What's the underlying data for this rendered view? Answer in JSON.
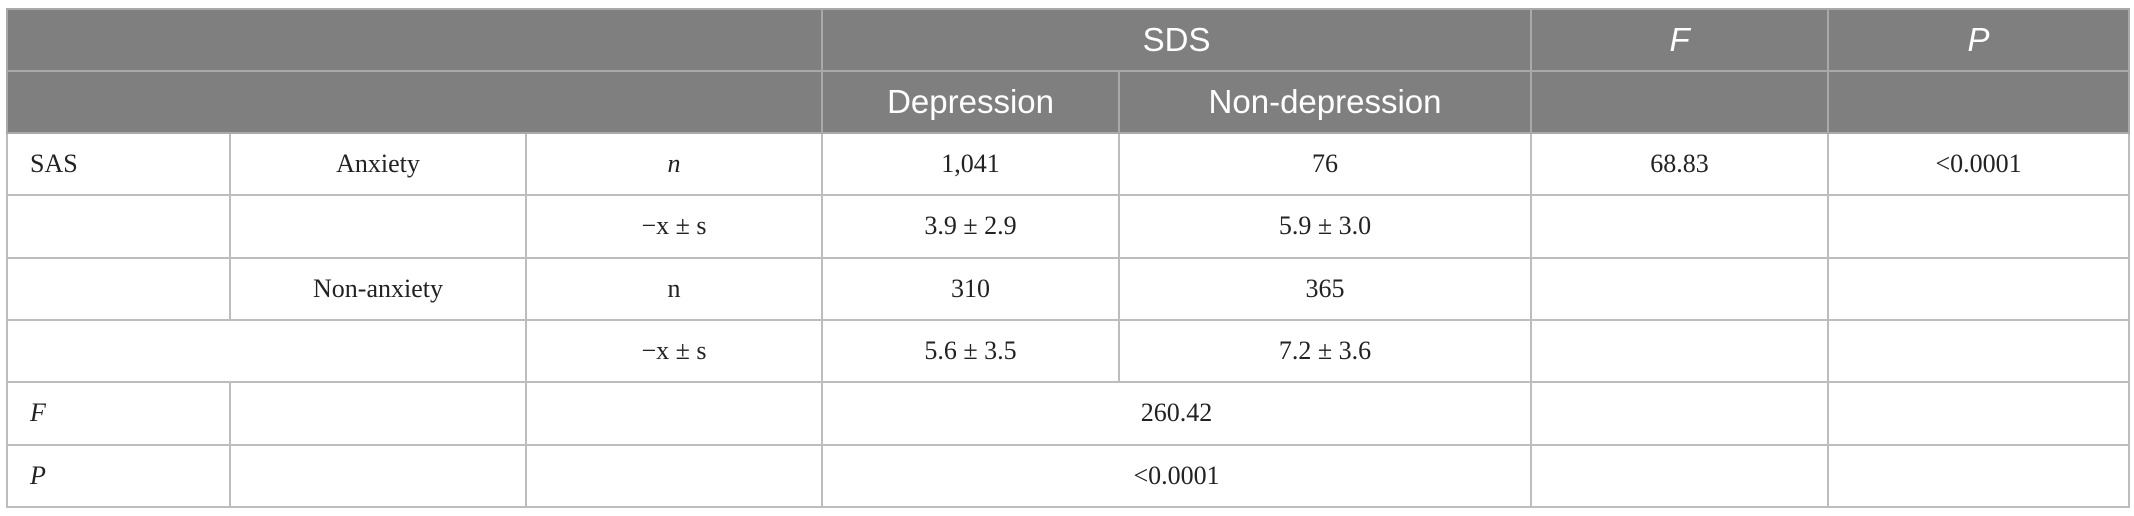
{
  "header": {
    "row1": {
      "sds": "SDS",
      "f": "F",
      "p": "P"
    },
    "row2": {
      "depression": "Depression",
      "non_depression": "Non-depression"
    }
  },
  "rows": [
    {
      "c0": "SAS",
      "c1": "Anxiety",
      "c2": "n",
      "dep": "1,041",
      "nondep": "76",
      "f": "68.83",
      "p": "<0.0001"
    },
    {
      "c0": "",
      "c1": "",
      "c2": "−x ± s",
      "dep": "3.9 ± 2.9",
      "nondep": "5.9 ± 3.0",
      "f": "",
      "p": ""
    },
    {
      "c0": "",
      "c1": "Non-anxiety",
      "c2": "n",
      "dep": "310",
      "nondep": "365",
      "f": "",
      "p": ""
    },
    {
      "c2": "−x ± s",
      "dep": "5.6 ± 3.5",
      "nondep": "7.2 ± 3.6",
      "f": "",
      "p": ""
    },
    {
      "c0": "F",
      "c1": "",
      "c2": "",
      "merged": "260.42",
      "f": "",
      "p": ""
    },
    {
      "c0": "P",
      "c1": "",
      "c2": "",
      "merged": "<0.0001",
      "f": "",
      "p": ""
    }
  ]
}
